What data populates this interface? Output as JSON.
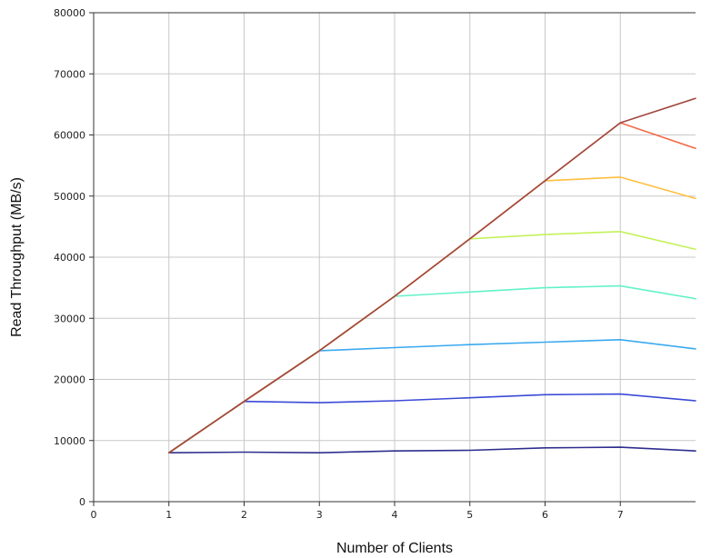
{
  "chart_data": {
    "type": "line",
    "title": "",
    "xlabel": "Number of Clients",
    "ylabel": "Read Throughput (MB/s)",
    "xlim": [
      0,
      8
    ],
    "ylim": [
      0,
      80000
    ],
    "xticks": [
      0,
      1,
      2,
      3,
      4,
      5,
      6,
      7
    ],
    "yticks": [
      0,
      10000,
      20000,
      30000,
      40000,
      50000,
      60000,
      70000,
      80000
    ],
    "grid": true,
    "legend": "none",
    "series": [
      {
        "color": "#2e2e8f",
        "x": [
          1,
          2,
          3,
          4,
          5,
          6,
          7,
          8
        ],
        "y": [
          8000,
          8100,
          8000,
          8300,
          8400,
          8800,
          8900,
          8300
        ]
      },
      {
        "color": "#3b49d6",
        "x": [
          1,
          2,
          3,
          4,
          5,
          6,
          7,
          8
        ],
        "y": [
          8000,
          16400,
          16200,
          16500,
          17000,
          17500,
          17600,
          16500
        ]
      },
      {
        "color": "#3aa9ef",
        "x": [
          1,
          2,
          3,
          4,
          5,
          6,
          7,
          8
        ],
        "y": [
          8000,
          16400,
          24700,
          25200,
          25700,
          26100,
          26500,
          25000
        ]
      },
      {
        "color": "#63f2c8",
        "x": [
          1,
          2,
          3,
          4,
          5,
          6,
          7,
          8
        ],
        "y": [
          8000,
          16400,
          24700,
          33600,
          34300,
          35000,
          35300,
          33200
        ]
      },
      {
        "color": "#c4f25a",
        "x": [
          1,
          2,
          3,
          4,
          5,
          6,
          7,
          8
        ],
        "y": [
          8000,
          16400,
          24700,
          33600,
          43000,
          43700,
          44200,
          41300
        ]
      },
      {
        "color": "#ffbf40",
        "x": [
          1,
          2,
          3,
          4,
          5,
          6,
          7,
          8
        ],
        "y": [
          8000,
          16400,
          24700,
          33600,
          43000,
          52500,
          53100,
          49600
        ]
      },
      {
        "color": "#f26b4a",
        "x": [
          1,
          2,
          3,
          4,
          5,
          6,
          7,
          8
        ],
        "y": [
          8000,
          16400,
          24700,
          33600,
          43000,
          52500,
          62000,
          57800
        ]
      },
      {
        "color": "#a0483e",
        "x": [
          1,
          2,
          3,
          4,
          5,
          6,
          7,
          8
        ],
        "y": [
          8000,
          16400,
          24700,
          33600,
          43000,
          52500,
          62000,
          66000
        ]
      }
    ]
  }
}
